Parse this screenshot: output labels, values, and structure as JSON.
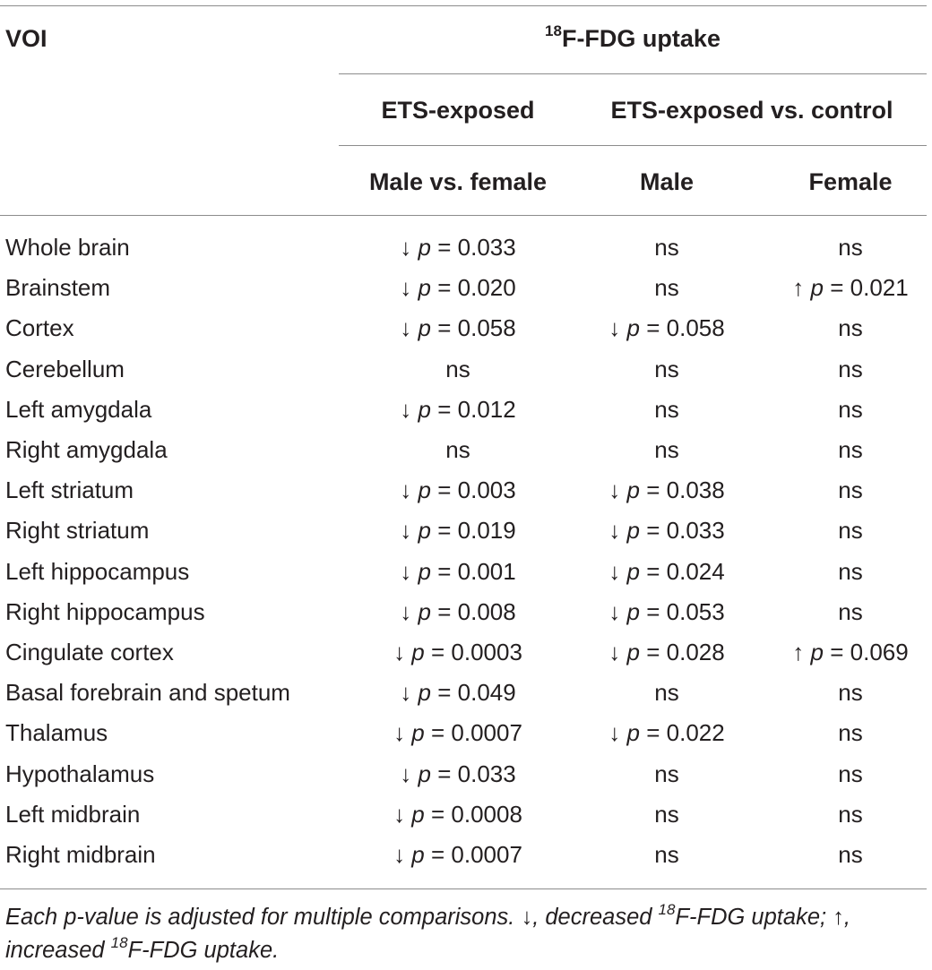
{
  "header": {
    "voi_label": "VOI",
    "uptake_sup": "18",
    "uptake_label": "F-FDG uptake",
    "group_exposed": "ETS-exposed",
    "group_vs_control": "ETS-exposed vs. control",
    "sub_male_vs_female": "Male vs. female",
    "sub_male": "Male",
    "sub_female": "Female"
  },
  "rows": [
    {
      "voi": "Whole brain",
      "mvf": "↓ p = 0.033",
      "male": "ns",
      "female": "ns"
    },
    {
      "voi": "Brainstem",
      "mvf": "↓ p = 0.020",
      "male": "ns",
      "female": "↑ p = 0.021"
    },
    {
      "voi": "Cortex",
      "mvf": "↓ p = 0.058",
      "male": "↓ p = 0.058",
      "female": "ns"
    },
    {
      "voi": "Cerebellum",
      "mvf": "ns",
      "male": "ns",
      "female": "ns"
    },
    {
      "voi": "Left amygdala",
      "mvf": "↓ p = 0.012",
      "male": "ns",
      "female": "ns"
    },
    {
      "voi": "Right amygdala",
      "mvf": "ns",
      "male": "ns",
      "female": "ns"
    },
    {
      "voi": "Left striatum",
      "mvf": "↓ p = 0.003",
      "male": "↓ p = 0.038",
      "female": "ns"
    },
    {
      "voi": "Right striatum",
      "mvf": "↓ p = 0.019",
      "male": "↓ p = 0.033",
      "female": "ns"
    },
    {
      "voi": "Left hippocampus",
      "mvf": "↓ p = 0.001",
      "male": "↓ p = 0.024",
      "female": "ns"
    },
    {
      "voi": "Right hippocampus",
      "mvf": "↓ p = 0.008",
      "male": "↓ p = 0.053",
      "female": "ns"
    },
    {
      "voi": "Cingulate cortex",
      "mvf": "↓ p = 0.0003",
      "male": "↓ p = 0.028",
      "female": "↑ p = 0.069"
    },
    {
      "voi": "Basal forebrain and spetum",
      "mvf": "↓ p = 0.049",
      "male": "ns",
      "female": "ns"
    },
    {
      "voi": "Thalamus",
      "mvf": "↓ p = 0.0007",
      "male": "↓ p = 0.022",
      "female": "ns"
    },
    {
      "voi": "Hypothalamus",
      "mvf": "↓ p = 0.033",
      "male": "ns",
      "female": "ns"
    },
    {
      "voi": "Left midbrain",
      "mvf": "↓ p = 0.0008",
      "male": "ns",
      "female": "ns"
    },
    {
      "voi": "Right midbrain",
      "mvf": "↓ p = 0.0007",
      "male": "ns",
      "female": "ns"
    }
  ],
  "footnote": {
    "part1": "Each p-value is adjusted for multiple comparisons. ↓, decreased ",
    "sup1": "18",
    "part2": "F-FDG uptake; ↑, increased ",
    "sup2": "18",
    "part3": "F-FDG uptake."
  }
}
